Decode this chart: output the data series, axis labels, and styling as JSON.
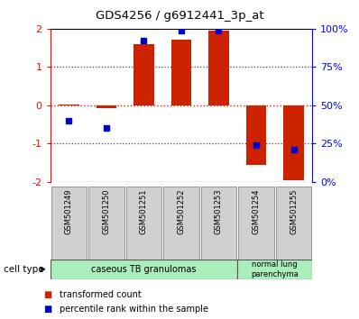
{
  "title": "GDS4256 / g6912441_3p_at",
  "samples": [
    "GSM501249",
    "GSM501250",
    "GSM501251",
    "GSM501252",
    "GSM501253",
    "GSM501254",
    "GSM501255"
  ],
  "red_bars": [
    0.02,
    -0.07,
    1.6,
    1.72,
    1.95,
    -1.55,
    -1.95
  ],
  "blue_squares_pct": [
    40,
    35,
    92,
    99,
    99,
    24,
    21
  ],
  "ylim": [
    -2,
    2
  ],
  "yticks_left": [
    -2,
    -1,
    0,
    1,
    2
  ],
  "yticks_right_labels": [
    "0%",
    "25%",
    "50%",
    "75%",
    "100%"
  ],
  "yticks_right_vals": [
    -2,
    -1,
    0,
    1,
    2
  ],
  "bar_color": "#cc2200",
  "square_color": "#0000cc",
  "legend_red_label": "transformed count",
  "legend_blue_label": "percentile rank within the sample",
  "cell_type_label": "cell type",
  "group1_label": "caseous TB granulomas",
  "group1_samples": 5,
  "group2_label": "normal lung\nparenchyma",
  "group2_samples": 2,
  "sample_box_color": "#d0d0d0",
  "group_box_color": "#aaeebb",
  "plot_border_color": "#000000"
}
